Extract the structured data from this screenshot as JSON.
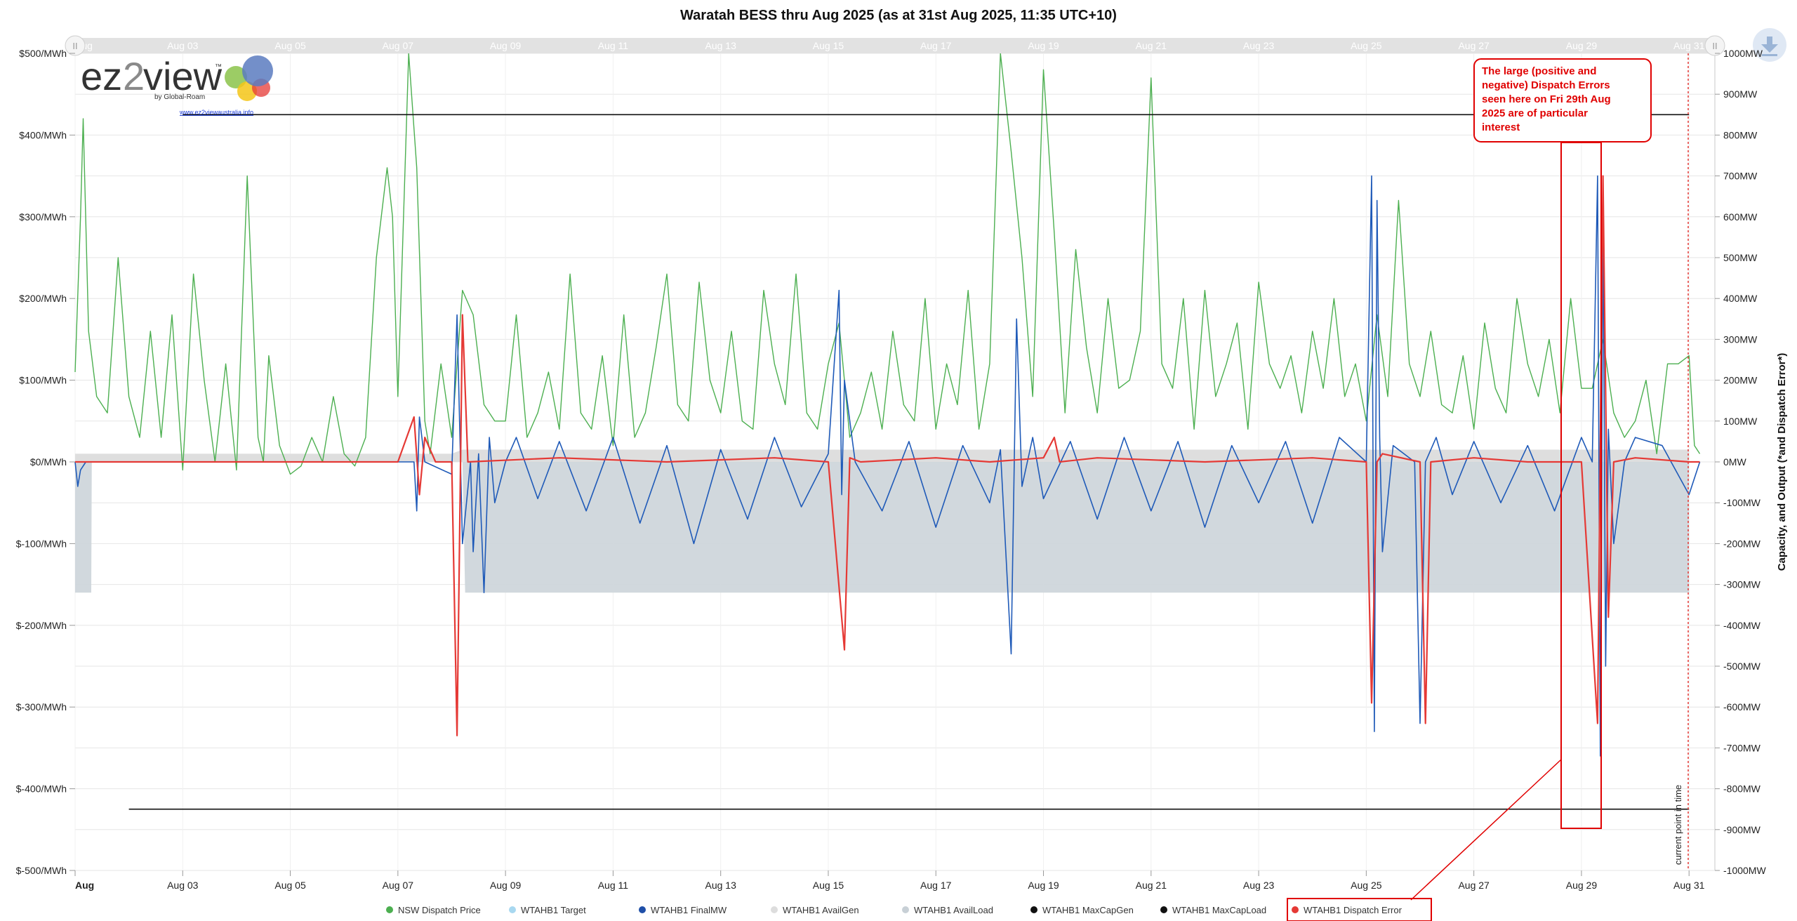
{
  "chart_data": {
    "type": "line",
    "title": "Waratah BESS thru Aug 2025 (as at 31st Aug 2025, 11:35 UTC+10)",
    "x_tick_labels": [
      "Aug",
      "Aug 03",
      "Aug 05",
      "Aug 07",
      "Aug 09",
      "Aug 11",
      "Aug 13",
      "Aug 15",
      "Aug 17",
      "Aug 19",
      "Aug 21",
      "Aug 23",
      "Aug 25",
      "Aug 27",
      "Aug 29",
      "Aug 31"
    ],
    "x_tick_days": [
      1,
      3,
      5,
      7,
      9,
      11,
      13,
      15,
      17,
      19,
      21,
      23,
      25,
      27,
      29,
      31
    ],
    "xlim_days": [
      1,
      31.48
    ],
    "navigator_labels": [
      "Aug",
      "Aug 03",
      "Aug 05",
      "Aug 07",
      "Aug 09",
      "Aug 11",
      "Aug 13",
      "Aug 15",
      "Aug 17",
      "Aug 19",
      "Aug 21",
      "Aug 23",
      "Aug 25",
      "Aug 27",
      "Aug 29",
      "Aug 31"
    ],
    "y_left": {
      "label": "",
      "ylim": [
        -500,
        500
      ],
      "tick_values": [
        500,
        400,
        300,
        200,
        100,
        0,
        -100,
        -200,
        -300,
        -400,
        -500
      ],
      "tick_labels": [
        "$500/MWh",
        "$400/MWh",
        "$300/MWh",
        "$200/MWh",
        "$100/MWh",
        "$0/MWh",
        "$-100/MWh",
        "$-200/MWh",
        "$-300/MWh",
        "$-400/MWh",
        "$-500/MWh"
      ]
    },
    "y_right": {
      "label": "Capacity, and Output (*and Dispatch Error*)",
      "ylim": [
        -1000,
        1000
      ],
      "tick_values": [
        1000,
        900,
        800,
        700,
        600,
        500,
        400,
        300,
        200,
        100,
        0,
        -100,
        -200,
        -300,
        -400,
        -500,
        -600,
        -700,
        -800,
        -900,
        -1000
      ],
      "tick_labels": [
        "1000MW",
        "900MW",
        "800MW",
        "700MW",
        "600MW",
        "500MW",
        "400MW",
        "300MW",
        "200MW",
        "100MW",
        "0MW",
        "-100MW",
        "-200MW",
        "-300MW",
        "-400MW",
        "-500MW",
        "-600MW",
        "-700MW",
        "-800MW",
        "-900MW",
        "-1000MW"
      ]
    },
    "grid": true,
    "legend_position": "bottom",
    "legend": [
      {
        "name": "NSW Dispatch Price",
        "color": "#4caf50"
      },
      {
        "name": "WTAHB1 Target",
        "color": "#a8d8f0"
      },
      {
        "name": "WTAHB1 FinalMW",
        "color": "#1f4fa8"
      },
      {
        "name": "WTAHB1 AvailGen",
        "color": "#dddddd"
      },
      {
        "name": "WTAHB1 AvailLoad",
        "color": "#c8d0d6"
      },
      {
        "name": "WTAHB1 MaxCapGen",
        "color": "#111111"
      },
      {
        "name": "WTAHB1 MaxCapLoad",
        "color": "#111111"
      },
      {
        "name": "WTAHB1 Dispatch Error",
        "color": "#e53935"
      }
    ],
    "series": [
      {
        "name": "NSW Dispatch Price",
        "axis": "left",
        "color": "#4caf50",
        "x": [
          1.0,
          1.1,
          1.15,
          1.25,
          1.4,
          1.6,
          1.8,
          2.0,
          2.2,
          2.4,
          2.6,
          2.8,
          3.0,
          3.2,
          3.4,
          3.6,
          3.8,
          4.0,
          4.2,
          4.4,
          4.5,
          4.6,
          4.8,
          5.0,
          5.2,
          5.4,
          5.6,
          5.8,
          6.0,
          6.2,
          6.4,
          6.6,
          6.8,
          6.9,
          7.0,
          7.2,
          7.35,
          7.5,
          7.6,
          7.8,
          8.0,
          8.2,
          8.4,
          8.6,
          8.8,
          9.0,
          9.2,
          9.4,
          9.6,
          9.8,
          10.0,
          10.2,
          10.4,
          10.6,
          10.8,
          11.0,
          11.2,
          11.4,
          11.6,
          11.8,
          12.0,
          12.2,
          12.4,
          12.6,
          12.8,
          13.0,
          13.2,
          13.4,
          13.6,
          13.8,
          14.0,
          14.2,
          14.4,
          14.6,
          14.8,
          15.0,
          15.2,
          15.4,
          15.6,
          15.8,
          16.0,
          16.2,
          16.4,
          16.6,
          16.8,
          17.0,
          17.2,
          17.4,
          17.6,
          17.8,
          18.0,
          18.2,
          18.4,
          18.6,
          18.8,
          19.0,
          19.2,
          19.4,
          19.6,
          19.8,
          20.0,
          20.2,
          20.4,
          20.6,
          20.8,
          21.0,
          21.2,
          21.4,
          21.6,
          21.8,
          22.0,
          22.2,
          22.4,
          22.6,
          22.8,
          23.0,
          23.2,
          23.4,
          23.6,
          23.8,
          24.0,
          24.2,
          24.4,
          24.6,
          24.8,
          25.0,
          25.2,
          25.4,
          25.6,
          25.8,
          26.0,
          26.2,
          26.4,
          26.6,
          26.8,
          27.0,
          27.2,
          27.4,
          27.6,
          27.8,
          28.0,
          28.2,
          28.4,
          28.6,
          28.8,
          29.0,
          29.2,
          29.4,
          29.6,
          29.8,
          30.0,
          30.2,
          30.4,
          30.6,
          30.8,
          31.0,
          31.1,
          31.2
        ],
        "values": [
          110,
          300,
          420,
          160,
          80,
          60,
          250,
          80,
          30,
          160,
          30,
          180,
          -10,
          230,
          100,
          0,
          120,
          -10,
          350,
          30,
          0,
          130,
          20,
          -15,
          -5,
          30,
          0,
          80,
          10,
          -5,
          30,
          250,
          360,
          300,
          80,
          500,
          360,
          50,
          10,
          120,
          30,
          210,
          180,
          70,
          50,
          50,
          180,
          30,
          60,
          110,
          40,
          230,
          60,
          40,
          130,
          20,
          180,
          30,
          60,
          140,
          230,
          70,
          50,
          220,
          100,
          60,
          160,
          50,
          40,
          210,
          120,
          70,
          230,
          60,
          40,
          120,
          170,
          30,
          60,
          110,
          40,
          160,
          70,
          50,
          200,
          40,
          120,
          70,
          210,
          40,
          120,
          500,
          380,
          250,
          80,
          480,
          280,
          60,
          260,
          140,
          60,
          200,
          90,
          100,
          160,
          470,
          120,
          90,
          200,
          40,
          210,
          80,
          120,
          170,
          40,
          220,
          120,
          90,
          130,
          60,
          160,
          90,
          200,
          80,
          120,
          50,
          180,
          80,
          320,
          120,
          80,
          160,
          70,
          60,
          130,
          40,
          170,
          90,
          60,
          200,
          120,
          80,
          150,
          60,
          200,
          90,
          90,
          150,
          60,
          30,
          50,
          100,
          10,
          120,
          120,
          130,
          20,
          10
        ]
      },
      {
        "name": "WTAHB1 FinalMW",
        "axis": "right",
        "color": "#1f4fa8",
        "x": [
          1.0,
          1.05,
          1.1,
          1.2,
          2,
          3,
          4,
          5,
          6,
          7,
          7.3,
          7.35,
          7.4,
          7.5,
          8.0,
          8.1,
          8.2,
          8.35,
          8.4,
          8.5,
          8.6,
          8.7,
          8.8,
          9.0,
          9.2,
          9.6,
          10,
          10.5,
          11,
          11.5,
          12,
          12.5,
          13,
          13.5,
          14,
          14.5,
          15.0,
          15.2,
          15.25,
          15.3,
          15.5,
          16,
          16.5,
          17,
          17.5,
          18.0,
          18.2,
          18.4,
          18.5,
          18.6,
          18.8,
          19.0,
          19.5,
          20,
          20.5,
          21,
          21.5,
          22,
          22.5,
          23,
          23.5,
          24,
          24.5,
          25.0,
          25.1,
          25.15,
          25.2,
          25.25,
          25.3,
          25.5,
          25.9,
          26.0,
          26.1,
          26.3,
          26.6,
          27,
          27.5,
          28,
          28.5,
          29.0,
          29.2,
          29.3,
          29.35,
          29.4,
          29.45,
          29.5,
          29.6,
          29.8,
          30,
          30.5,
          31.0,
          31.2
        ],
        "values": [
          0,
          -60,
          -20,
          0,
          0,
          0,
          0,
          0,
          0,
          0,
          0,
          -120,
          110,
          0,
          -30,
          360,
          -200,
          0,
          -220,
          20,
          -320,
          60,
          -100,
          0,
          60,
          -90,
          50,
          -120,
          60,
          -150,
          40,
          -200,
          30,
          -140,
          60,
          -110,
          20,
          420,
          -80,
          200,
          0,
          -120,
          50,
          -160,
          40,
          -100,
          30,
          -470,
          350,
          -60,
          60,
          -90,
          50,
          -140,
          60,
          -120,
          50,
          -160,
          40,
          -100,
          50,
          -150,
          60,
          0,
          700,
          -660,
          640,
          60,
          -220,
          40,
          0,
          -640,
          0,
          60,
          -80,
          50,
          -100,
          40,
          -120,
          60,
          0,
          700,
          -720,
          620,
          -500,
          80,
          -200,
          0,
          60,
          40,
          -80,
          0
        ]
      },
      {
        "name": "WTAHB1 Dispatch Error",
        "axis": "right",
        "color": "#e53935",
        "x": [
          1.0,
          3,
          5,
          7.0,
          7.3,
          7.4,
          7.5,
          7.7,
          8.0,
          8.1,
          8.2,
          8.3,
          10,
          12,
          14,
          15.0,
          15.3,
          15.4,
          15.6,
          17,
          18,
          19,
          19.2,
          19.3,
          20,
          22,
          24,
          25.0,
          25.1,
          25.2,
          25.3,
          26.0,
          26.1,
          26.2,
          27,
          28,
          29.0,
          29.3,
          29.4,
          29.5,
          29.6,
          30,
          31.0,
          31.2
        ],
        "values": [
          0,
          0,
          0,
          0,
          110,
          -80,
          60,
          0,
          0,
          -670,
          360,
          0,
          10,
          0,
          10,
          0,
          -460,
          10,
          0,
          10,
          0,
          10,
          60,
          0,
          10,
          0,
          10,
          0,
          -590,
          0,
          20,
          0,
          -640,
          0,
          10,
          0,
          0,
          -640,
          700,
          -380,
          0,
          10,
          0,
          0
        ]
      },
      {
        "name": "WTAHB1 MaxCapGen",
        "axis": "right",
        "color": "#111111",
        "x": [
          3.0,
          31.0
        ],
        "values": [
          850,
          850
        ]
      },
      {
        "name": "WTAHB1 MaxCapLoad",
        "axis": "right",
        "color": "#111111",
        "x": [
          2.0,
          31.0
        ],
        "values": [
          -850,
          -850
        ]
      },
      {
        "name": "WTAHB1 AvailGen",
        "axis": "right",
        "color": "#dddddd",
        "x": [
          1.0,
          8.0,
          8.2,
          31.0
        ],
        "values": [
          20,
          20,
          30,
          30
        ]
      },
      {
        "name": "WTAHB1 AvailLoad",
        "axis": "right",
        "color": "#c8d0d6",
        "x": [
          1.0,
          1.3,
          1.31,
          8.2,
          8.25,
          31.0
        ],
        "values": [
          -320,
          -320,
          0,
          0,
          -320,
          -320
        ]
      }
    ],
    "annotations": [
      {
        "text_lines": [
          "The large (positive and",
          "negative) Dispatch Errors",
          "seen here on Fri 29th Aug",
          "2025 are of particular",
          "interest"
        ],
        "color": "#e00000"
      },
      {
        "text": "current point in time",
        "color": "#111111"
      }
    ]
  },
  "logo": {
    "text_left": "ez",
    "text_mid": "2",
    "text_right": "view",
    "tm": "™",
    "by_text": "by Global-Roam",
    "url": "www.ez2viewaustralia.info"
  },
  "nav_handles": {
    "left": "II",
    "right": "II"
  },
  "download_icon": "download-icon"
}
